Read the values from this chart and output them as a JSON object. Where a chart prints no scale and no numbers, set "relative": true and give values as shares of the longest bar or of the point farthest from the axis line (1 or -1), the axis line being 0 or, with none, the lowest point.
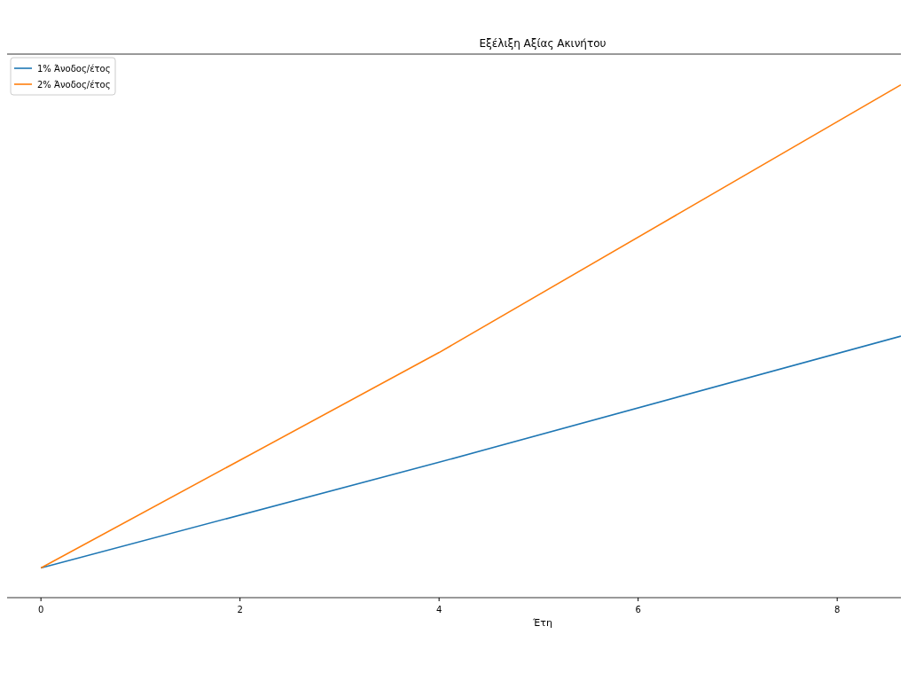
{
  "chart_data": {
    "type": "line",
    "title": "Εξέλιξη Αξίας Ακινήτου",
    "xlabel": "Έτη",
    "relative": true,
    "xlim": [
      -0.34,
      8.64
    ],
    "xticks": [
      0,
      2,
      4,
      6,
      8
    ],
    "legend": "top left",
    "grid": false,
    "tick_labels": "x",
    "series": [
      {
        "name": "1% Άνοδος/έτος",
        "color": "#1f77b4",
        "x": [
          0,
          4,
          8.64
        ],
        "values": [
          0.058,
          0.264,
          0.51
        ]
      },
      {
        "name": "2% Άνοδος/έτος",
        "color": "#ff7f0e",
        "x": [
          0,
          4,
          8.64
        ],
        "values": [
          0.058,
          0.478,
          1
        ]
      }
    ]
  }
}
